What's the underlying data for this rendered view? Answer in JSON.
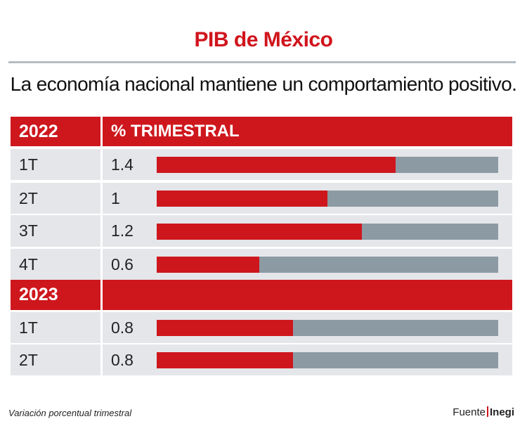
{
  "title": "PIB de México",
  "subtitle": "La economía nacional mantiene un comportamiento positivo.",
  "header": {
    "column_label": "% TRIMESTRAL"
  },
  "footer": {
    "note": "Variación porcentual trimestral",
    "source_label": "Fuente",
    "source_name": "Inegi"
  },
  "colors": {
    "accent": "#ce171d",
    "track": "#8c9ba3",
    "row_bg": "#e4e6e9"
  },
  "chart_data": {
    "type": "bar",
    "title": "PIB de México",
    "subtitle": "La economía nacional mantiene un comportamiento positivo.",
    "ylabel": "% TRIMESTRAL",
    "value_max": 2.0,
    "groups": [
      {
        "year": "2022",
        "quarters": [
          {
            "label": "1T",
            "value": 1.4,
            "value_text": "1.4"
          },
          {
            "label": "2T",
            "value": 1.0,
            "value_text": "1"
          },
          {
            "label": "3T",
            "value": 1.2,
            "value_text": "1.2"
          },
          {
            "label": "4T",
            "value": 0.6,
            "value_text": "0.6"
          }
        ]
      },
      {
        "year": "2023",
        "quarters": [
          {
            "label": "1T",
            "value": 0.8,
            "value_text": "0.8"
          },
          {
            "label": "2T",
            "value": 0.8,
            "value_text": "0.8"
          }
        ]
      }
    ]
  }
}
